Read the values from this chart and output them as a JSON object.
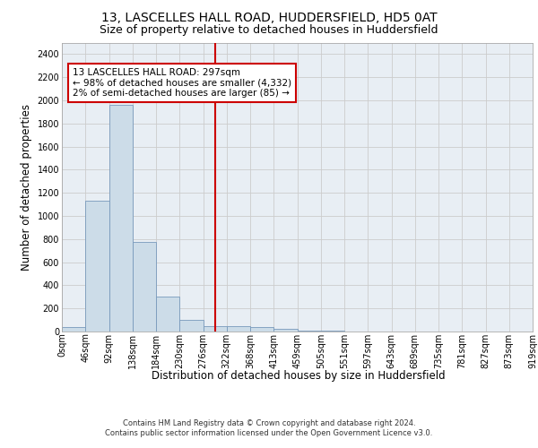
{
  "title_line1": "13, LASCELLES HALL ROAD, HUDDERSFIELD, HD5 0AT",
  "title_line2": "Size of property relative to detached houses in Huddersfield",
  "xlabel": "Distribution of detached houses by size in Huddersfield",
  "ylabel": "Number of detached properties",
  "footer_line1": "Contains HM Land Registry data © Crown copyright and database right 2024.",
  "footer_line2": "Contains public sector information licensed under the Open Government Licence v3.0.",
  "bin_labels": [
    "0sqm",
    "46sqm",
    "92sqm",
    "138sqm",
    "184sqm",
    "230sqm",
    "276sqm",
    "322sqm",
    "368sqm",
    "413sqm",
    "459sqm",
    "505sqm",
    "551sqm",
    "597sqm",
    "643sqm",
    "689sqm",
    "735sqm",
    "781sqm",
    "827sqm",
    "873sqm",
    "919sqm"
  ],
  "bar_values": [
    35,
    1130,
    1960,
    775,
    300,
    100,
    50,
    45,
    35,
    20,
    10,
    10,
    0,
    0,
    0,
    0,
    0,
    0,
    0,
    0
  ],
  "bar_color": "#ccdce8",
  "bar_edgecolor": "#7799bb",
  "bar_linewidth": 0.6,
  "vline_x": 6.5,
  "vline_color": "#cc0000",
  "annotation_text": "13 LASCELLES HALL ROAD: 297sqm\n← 98% of detached houses are smaller (4,332)\n2% of semi-detached houses are larger (85) →",
  "annotation_box_color": "#cc0000",
  "ylim": [
    0,
    2500
  ],
  "yticks": [
    0,
    200,
    400,
    600,
    800,
    1000,
    1200,
    1400,
    1600,
    1800,
    2000,
    2200,
    2400
  ],
  "grid_color": "#cccccc",
  "plot_bg_color": "#e8eef4",
  "title_fontsize": 10,
  "subtitle_fontsize": 9,
  "axis_label_fontsize": 8.5,
  "tick_fontsize": 7,
  "annotation_fontsize": 7.5,
  "footer_fontsize": 6
}
